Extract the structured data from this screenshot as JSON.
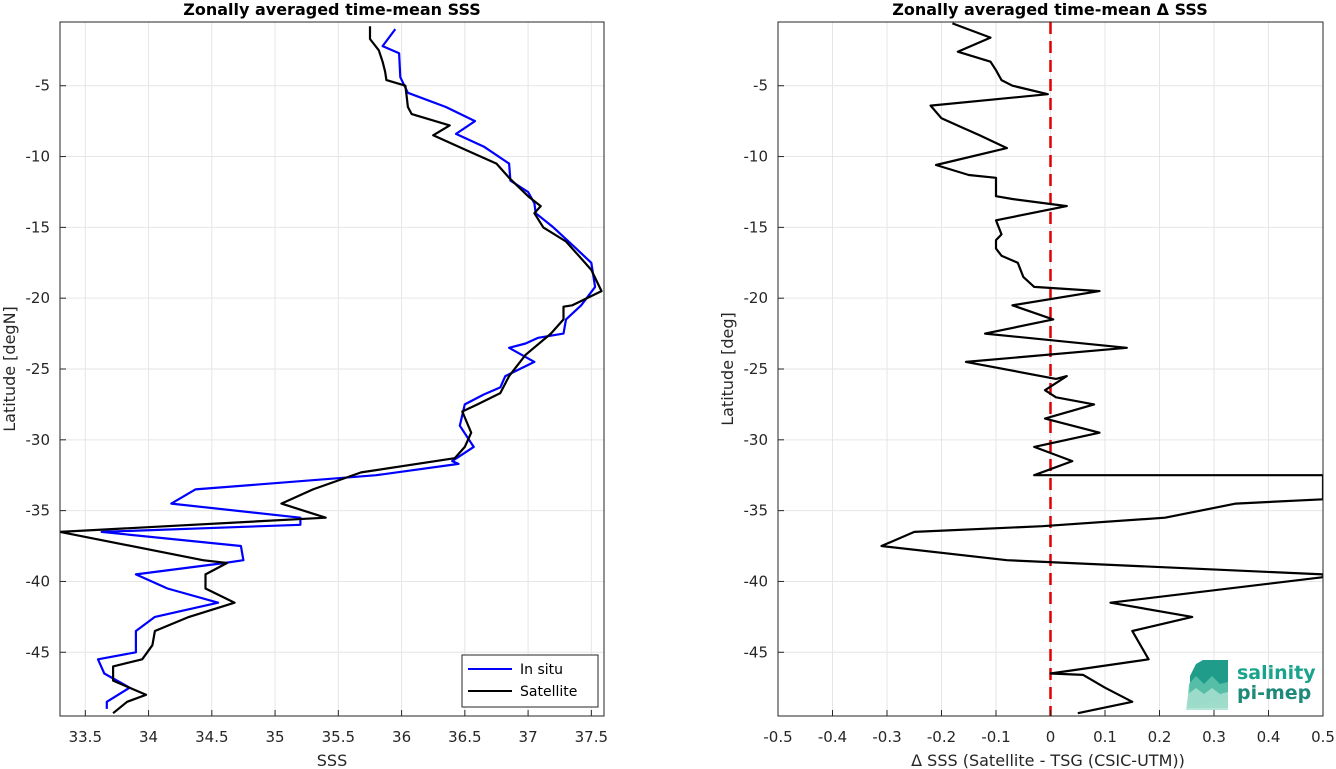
{
  "chart_data": [
    {
      "type": "line",
      "title": "Zonally averaged time-mean SSS",
      "xlabel": "SSS",
      "ylabel": "Latitude [degN]",
      "xlim": [
        33.3,
        37.6
      ],
      "ylim": [
        -49.5,
        -0.5
      ],
      "xticks": [
        33.5,
        34,
        34.5,
        35,
        35.5,
        36,
        36.5,
        37,
        37.5
      ],
      "xtick_labels": [
        "33.5",
        "34",
        "34.5",
        "35",
        "35.5",
        "36",
        "36.5",
        "37",
        "37.5"
      ],
      "yticks": [
        -5,
        -10,
        -15,
        -20,
        -25,
        -30,
        -35,
        -40,
        -45
      ],
      "ytick_labels": [
        "-5",
        "-10",
        "-15",
        "-20",
        "-25",
        "-30",
        "-35",
        "-40",
        "-45"
      ],
      "grid": true,
      "legend_position": "bottom-right",
      "series": [
        {
          "name": "In situ",
          "color": "#0000ff",
          "points": [
            [
              35.95,
              -1.0
            ],
            [
              35.85,
              -2.2
            ],
            [
              35.98,
              -2.7
            ],
            [
              35.99,
              -4.4
            ],
            [
              36.05,
              -5.5
            ],
            [
              36.35,
              -6.5
            ],
            [
              36.58,
              -7.5
            ],
            [
              36.43,
              -8.4
            ],
            [
              36.65,
              -9.3
            ],
            [
              36.85,
              -10.5
            ],
            [
              36.86,
              -11.7
            ],
            [
              37.0,
              -12.5
            ],
            [
              37.05,
              -13.3
            ],
            [
              37.06,
              -14.0
            ],
            [
              37.2,
              -15.0
            ],
            [
              37.38,
              -16.5
            ],
            [
              37.5,
              -17.5
            ],
            [
              37.53,
              -19.2
            ],
            [
              37.42,
              -20.5
            ],
            [
              37.3,
              -21.5
            ],
            [
              37.28,
              -22.5
            ],
            [
              37.08,
              -22.8
            ],
            [
              36.98,
              -23.2
            ],
            [
              36.85,
              -23.5
            ],
            [
              37.05,
              -24.5
            ],
            [
              36.82,
              -25.5
            ],
            [
              36.78,
              -26.3
            ],
            [
              36.65,
              -26.8
            ],
            [
              36.5,
              -27.5
            ],
            [
              36.46,
              -29.0
            ],
            [
              36.57,
              -30.5
            ],
            [
              36.4,
              -31.5
            ],
            [
              36.45,
              -31.7
            ],
            [
              35.8,
              -32.5
            ],
            [
              34.37,
              -33.5
            ],
            [
              34.18,
              -34.5
            ],
            [
              35.2,
              -35.5
            ],
            [
              35.2,
              -36.0
            ],
            [
              33.63,
              -36.5
            ],
            [
              34.73,
              -37.5
            ],
            [
              34.75,
              -38.5
            ],
            [
              34.6,
              -38.7
            ],
            [
              33.9,
              -39.5
            ],
            [
              34.15,
              -40.5
            ],
            [
              34.55,
              -41.5
            ],
            [
              34.05,
              -42.5
            ],
            [
              33.9,
              -43.5
            ],
            [
              33.9,
              -45.0
            ],
            [
              33.6,
              -45.5
            ],
            [
              33.65,
              -46.5
            ],
            [
              33.85,
              -47.5
            ],
            [
              33.67,
              -48.5
            ],
            [
              33.67,
              -49.0
            ]
          ]
        },
        {
          "name": "Satellite",
          "color": "#000000",
          "points": [
            [
              35.75,
              -0.8
            ],
            [
              35.75,
              -1.7
            ],
            [
              35.82,
              -2.5
            ],
            [
              35.85,
              -3.3
            ],
            [
              35.87,
              -4.0
            ],
            [
              35.88,
              -4.6
            ],
            [
              36.03,
              -5.0
            ],
            [
              36.05,
              -6.5
            ],
            [
              36.08,
              -7.0
            ],
            [
              36.38,
              -7.8
            ],
            [
              36.25,
              -8.5
            ],
            [
              36.5,
              -9.5
            ],
            [
              36.75,
              -10.5
            ],
            [
              36.85,
              -11.5
            ],
            [
              37.0,
              -12.8
            ],
            [
              37.1,
              -13.5
            ],
            [
              37.05,
              -14.0
            ],
            [
              37.12,
              -15.0
            ],
            [
              37.3,
              -16.0
            ],
            [
              37.4,
              -17.0
            ],
            [
              37.5,
              -18.0
            ],
            [
              37.58,
              -19.5
            ],
            [
              37.35,
              -20.5
            ],
            [
              37.28,
              -20.6
            ],
            [
              37.28,
              -21.5
            ],
            [
              37.18,
              -22.5
            ],
            [
              36.98,
              -24.0
            ],
            [
              36.85,
              -25.5
            ],
            [
              36.78,
              -26.7
            ],
            [
              36.6,
              -27.5
            ],
            [
              36.48,
              -28.0
            ],
            [
              36.55,
              -29.5
            ],
            [
              36.5,
              -30.5
            ],
            [
              36.45,
              -31.0
            ],
            [
              36.42,
              -31.3
            ],
            [
              35.68,
              -32.3
            ],
            [
              35.3,
              -33.5
            ],
            [
              35.05,
              -34.5
            ],
            [
              35.4,
              -35.5
            ],
            [
              33.3,
              -36.5
            ],
            [
              34.43,
              -38.5
            ],
            [
              34.62,
              -38.7
            ],
            [
              34.45,
              -39.5
            ],
            [
              34.45,
              -40.5
            ],
            [
              34.68,
              -41.5
            ],
            [
              34.32,
              -42.5
            ],
            [
              34.05,
              -43.5
            ],
            [
              34.03,
              -44.5
            ],
            [
              33.95,
              -45.5
            ],
            [
              33.72,
              -46.0
            ],
            [
              33.72,
              -47.0
            ],
            [
              33.85,
              -47.5
            ],
            [
              33.98,
              -48.0
            ],
            [
              33.83,
              -48.5
            ],
            [
              33.72,
              -49.3
            ]
          ]
        }
      ]
    },
    {
      "type": "line",
      "title": "Zonally averaged time-mean Δ SSS",
      "xlabel": "Δ SSS (Satellite - TSG (CSIC-UTM))",
      "ylabel": "Latitude [deg]",
      "xlim": [
        -0.5,
        0.5
      ],
      "ylim": [
        -49.5,
        -0.5
      ],
      "xticks": [
        -0.5,
        -0.4,
        -0.3,
        -0.2,
        -0.1,
        0,
        0.1,
        0.2,
        0.3,
        0.4,
        0.5
      ],
      "xtick_labels": [
        "-0.5",
        "-0.4",
        "-0.3",
        "-0.2",
        "-0.1",
        "0",
        "0.1",
        "0.2",
        "0.3",
        "0.4",
        "0.5"
      ],
      "yticks": [
        -5,
        -10,
        -15,
        -20,
        -25,
        -30,
        -35,
        -40,
        -45
      ],
      "ytick_labels": [
        "-5",
        "-10",
        "-15",
        "-20",
        "-25",
        "-30",
        "-35",
        "-40",
        "-45"
      ],
      "grid": true,
      "reference_line": {
        "x": 0,
        "color": "#e00000",
        "style": "dashed"
      },
      "series": [
        {
          "color": "#000000",
          "points": [
            [
              -0.18,
              -0.6
            ],
            [
              -0.11,
              -1.6
            ],
            [
              -0.17,
              -2.6
            ],
            [
              -0.11,
              -3.3
            ],
            [
              -0.1,
              -3.9
            ],
            [
              -0.09,
              -4.6
            ],
            [
              -0.07,
              -5.0
            ],
            [
              -0.005,
              -5.6
            ],
            [
              -0.22,
              -6.4
            ],
            [
              -0.2,
              -7.3
            ],
            [
              -0.13,
              -8.5
            ],
            [
              -0.08,
              -9.4
            ],
            [
              -0.21,
              -10.6
            ],
            [
              -0.15,
              -11.3
            ],
            [
              -0.1,
              -11.5
            ],
            [
              -0.1,
              -12.8
            ],
            [
              -0.07,
              -13.0
            ],
            [
              0.03,
              -13.5
            ],
            [
              -0.1,
              -14.5
            ],
            [
              -0.09,
              -15.5
            ],
            [
              -0.1,
              -15.9
            ],
            [
              -0.1,
              -16.5
            ],
            [
              -0.09,
              -17.0
            ],
            [
              -0.06,
              -17.5
            ],
            [
              -0.05,
              -18.5
            ],
            [
              -0.03,
              -19.2
            ],
            [
              0.09,
              -19.5
            ],
            [
              -0.07,
              -20.5
            ],
            [
              0.005,
              -21.5
            ],
            [
              -0.12,
              -22.5
            ],
            [
              0.14,
              -23.5
            ],
            [
              -0.155,
              -24.5
            ],
            [
              0.01,
              -25.7
            ],
            [
              0.03,
              -25.5
            ],
            [
              -0.01,
              -26.5
            ],
            [
              0.01,
              -27.0
            ],
            [
              0.08,
              -27.5
            ],
            [
              -0.01,
              -28.5
            ],
            [
              0.09,
              -29.5
            ],
            [
              -0.03,
              -30.5
            ],
            [
              0.04,
              -31.5
            ],
            [
              -0.03,
              -32.5
            ],
            [
              0.5,
              -32.5
            ],
            [
              0.5,
              -34.2
            ],
            [
              0.34,
              -34.5
            ],
            [
              0.21,
              -35.5
            ],
            [
              -0.015,
              -36.1
            ],
            [
              -0.25,
              -36.5
            ],
            [
              -0.31,
              -37.5
            ],
            [
              -0.08,
              -38.5
            ],
            [
              0.5,
              -39.5
            ],
            [
              0.5,
              -39.7
            ],
            [
              0.11,
              -41.5
            ],
            [
              0.26,
              -42.5
            ],
            [
              0.15,
              -43.5
            ],
            [
              0.18,
              -45.5
            ],
            [
              0.0,
              -46.5
            ],
            [
              0.06,
              -46.6
            ],
            [
              0.1,
              -47.5
            ],
            [
              0.15,
              -48.5
            ],
            [
              0.05,
              -49.3
            ]
          ]
        }
      ]
    }
  ],
  "logo": {
    "line1": "salinity",
    "line2": "pi-mep"
  }
}
